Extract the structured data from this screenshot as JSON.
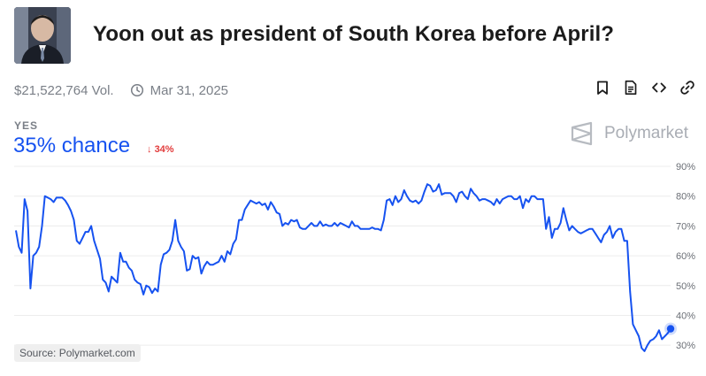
{
  "market": {
    "title": "Yoon out as president of South Korea before April?",
    "volume": "$21,522,764 Vol.",
    "date": "Mar 31, 2025",
    "outcome_label": "YES",
    "chance_text": "35% chance",
    "change_text": "34%",
    "change_direction": "down",
    "brand": "Polymarket",
    "source": "Source: Polymarket.com"
  },
  "icons": {
    "avatar": "person-photo",
    "clock": "clock-icon",
    "actions": [
      "bookmark-icon",
      "document-icon",
      "embed-code-icon",
      "link-icon"
    ]
  },
  "colors": {
    "line": "#1652f0",
    "negative": "#e23b3b",
    "muted": "#7a7f87"
  },
  "chart_data": {
    "type": "line",
    "ylim": [
      0.25,
      0.9
    ],
    "yticks": [
      "90%",
      "80%",
      "70%",
      "60%",
      "50%",
      "40%",
      "30%"
    ],
    "grid": true,
    "series": [
      {
        "values": [
          0.685,
          0.63,
          0.61,
          0.79,
          0.75,
          0.49,
          0.6,
          0.61,
          0.63,
          0.7,
          0.8,
          0.795,
          0.79,
          0.78,
          0.795,
          0.795,
          0.795,
          0.785,
          0.77,
          0.75,
          0.72,
          0.65,
          0.64,
          0.66,
          0.68,
          0.68,
          0.7,
          0.65,
          0.62,
          0.59,
          0.52,
          0.51,
          0.48,
          0.53,
          0.52,
          0.51,
          0.61,
          0.58,
          0.58,
          0.56,
          0.55,
          0.52,
          0.51,
          0.505,
          0.47,
          0.5,
          0.495,
          0.475,
          0.49,
          0.48,
          0.57,
          0.605,
          0.61,
          0.62,
          0.65,
          0.72,
          0.65,
          0.63,
          0.615,
          0.55,
          0.555,
          0.6,
          0.59,
          0.595,
          0.54,
          0.565,
          0.58,
          0.57,
          0.57,
          0.575,
          0.58,
          0.6,
          0.58,
          0.615,
          0.605,
          0.64,
          0.655,
          0.72,
          0.72,
          0.755,
          0.77,
          0.785,
          0.78,
          0.775,
          0.78,
          0.77,
          0.775,
          0.755,
          0.78,
          0.765,
          0.745,
          0.74,
          0.7,
          0.71,
          0.705,
          0.72,
          0.715,
          0.72,
          0.695,
          0.69,
          0.69,
          0.7,
          0.71,
          0.7,
          0.7,
          0.715,
          0.7,
          0.705,
          0.7,
          0.7,
          0.71,
          0.7,
          0.71,
          0.705,
          0.7,
          0.695,
          0.715,
          0.7,
          0.7,
          0.69,
          0.69,
          0.69,
          0.69,
          0.695,
          0.69,
          0.69,
          0.685,
          0.72,
          0.785,
          0.79,
          0.77,
          0.8,
          0.78,
          0.79,
          0.82,
          0.8,
          0.785,
          0.78,
          0.785,
          0.775,
          0.785,
          0.815,
          0.84,
          0.835,
          0.815,
          0.82,
          0.84,
          0.805,
          0.81,
          0.81,
          0.81,
          0.8,
          0.78,
          0.81,
          0.815,
          0.8,
          0.79,
          0.825,
          0.81,
          0.8,
          0.785,
          0.79,
          0.79,
          0.785,
          0.78,
          0.77,
          0.79,
          0.775,
          0.79,
          0.795,
          0.8,
          0.8,
          0.79,
          0.79,
          0.8,
          0.76,
          0.79,
          0.78,
          0.8,
          0.8,
          0.79,
          0.79,
          0.79,
          0.69,
          0.73,
          0.66,
          0.69,
          0.69,
          0.71,
          0.76,
          0.72,
          0.685,
          0.7,
          0.69,
          0.68,
          0.675,
          0.68,
          0.685,
          0.69,
          0.69,
          0.675,
          0.66,
          0.645,
          0.67,
          0.68,
          0.7,
          0.66,
          0.68,
          0.69,
          0.69,
          0.65,
          0.65,
          0.48,
          0.37,
          0.35,
          0.33,
          0.29,
          0.28,
          0.3,
          0.315,
          0.32,
          0.33,
          0.35,
          0.32,
          0.33,
          0.34,
          0.355
        ]
      }
    ]
  }
}
